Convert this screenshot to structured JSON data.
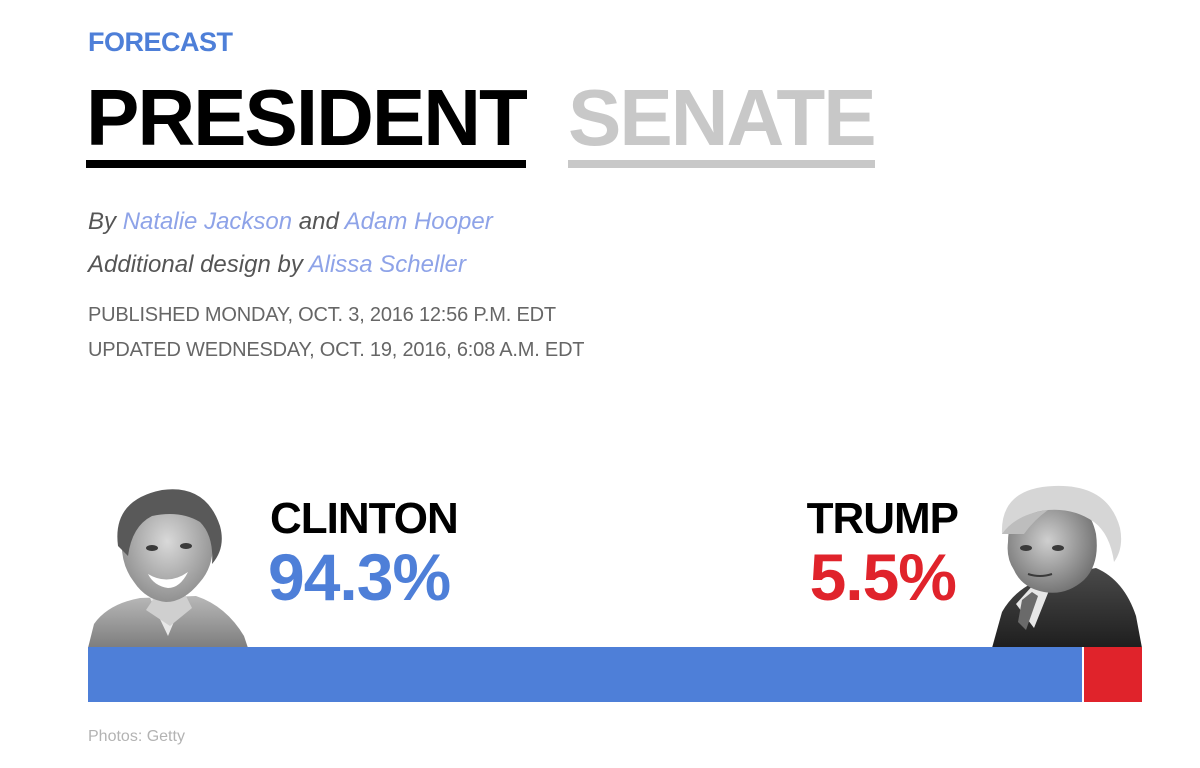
{
  "header": {
    "kicker": "FORECAST",
    "tabs": [
      {
        "label": "PRESIDENT",
        "active": true
      },
      {
        "label": "SENATE",
        "active": false
      }
    ]
  },
  "byline": {
    "prefix": "By",
    "author1": "Natalie Jackson",
    "joiner": "and",
    "author2": "Adam Hooper",
    "design_prefix": "Additional design by",
    "designer": "Alissa Scheller"
  },
  "timestamps": {
    "published": "PUBLISHED MONDAY, OCT. 3, 2016 12:56 P.M. EDT",
    "updated": "UPDATED WEDNESDAY, OCT. 19, 2016, 6:08 A.M. EDT"
  },
  "candidates": [
    {
      "name": "CLINTON",
      "pct_label": "94.3%",
      "pct": 94.3,
      "color": "#4e7fd8",
      "photo": "clinton-portrait"
    },
    {
      "name": "TRUMP",
      "pct_label": "5.5%",
      "pct": 5.5,
      "color": "#e0232b",
      "photo": "trump-portrait"
    }
  ],
  "photo_credit": "Photos: Getty"
}
